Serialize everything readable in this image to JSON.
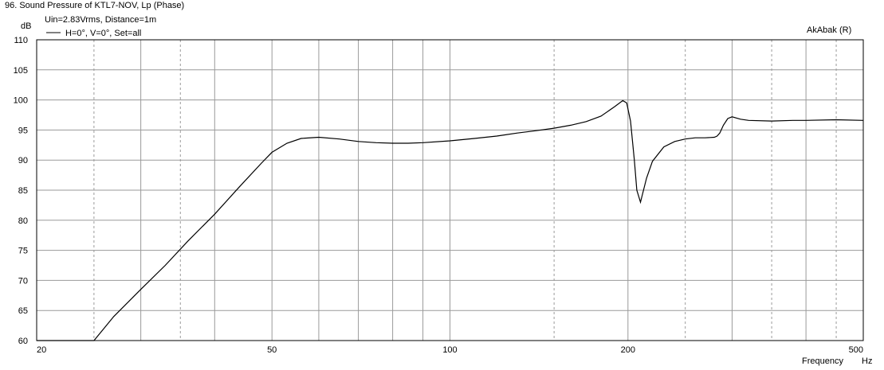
{
  "header": {
    "title": "96. Sound Pressure of KTL7-NOV, Lp (Phase)",
    "subtitle": "Uin=2.83Vrms, Distance=1m",
    "brand": "AkAbak (R)"
  },
  "chart_data": {
    "type": "line",
    "title": "96. Sound Pressure of KTL7-NOV, Lp (Phase)",
    "subtitle": "Uin=2.83Vrms, Distance=1m",
    "xlabel": "Frequency",
    "xunit": "Hz",
    "yunit": "dB",
    "xscale": "log",
    "xlim": [
      20,
      500
    ],
    "ylim": [
      60,
      110
    ],
    "x_ticks": [
      20,
      50,
      100,
      200,
      500
    ],
    "y_ticks": [
      60,
      65,
      70,
      75,
      80,
      85,
      90,
      95,
      100,
      105,
      110
    ],
    "grid": true,
    "legend_position": "top-left",
    "series": [
      {
        "name": "H=0°, V=0°, Set=all",
        "color": "#000000",
        "x": [
          20,
          25,
          27,
          30,
          33,
          36,
          40,
          44,
          48,
          50,
          53,
          56,
          60,
          65,
          70,
          75,
          80,
          85,
          90,
          100,
          110,
          120,
          130,
          140,
          150,
          160,
          170,
          180,
          190,
          196,
          199,
          202,
          205,
          207,
          210,
          215,
          220,
          230,
          240,
          250,
          260,
          270,
          280,
          283,
          286,
          290,
          295,
          300,
          310,
          320,
          350,
          380,
          400,
          450,
          500
        ],
        "y": [
          60,
          60,
          64,
          68.5,
          72.5,
          76.5,
          81,
          85.5,
          89.5,
          91.3,
          92.8,
          93.6,
          93.8,
          93.5,
          93.1,
          92.9,
          92.8,
          92.8,
          92.9,
          93.2,
          93.6,
          94.0,
          94.5,
          94.9,
          95.3,
          95.8,
          96.4,
          97.3,
          98.9,
          99.9,
          99.5,
          96.5,
          90,
          85,
          83,
          87,
          89.8,
          92.2,
          93.1,
          93.5,
          93.7,
          93.7,
          93.8,
          94,
          94.5,
          95.8,
          96.9,
          97.2,
          96.8,
          96.6,
          96.5,
          96.6,
          96.6,
          96.7,
          96.6
        ]
      }
    ]
  }
}
